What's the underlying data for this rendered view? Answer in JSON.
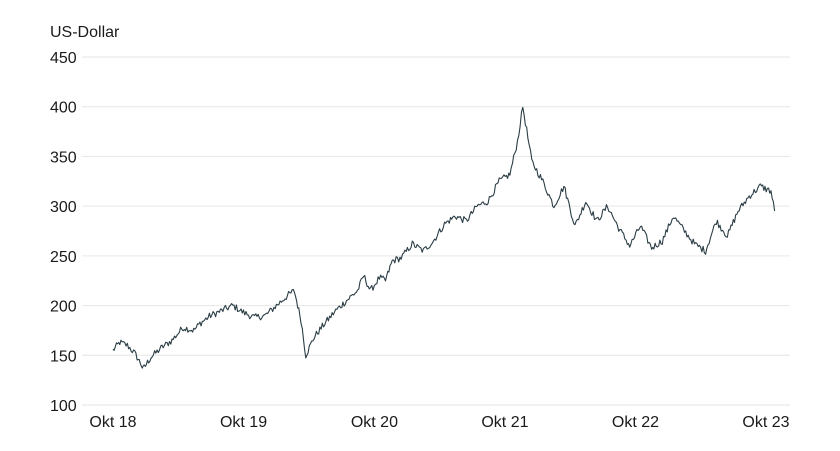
{
  "chart_data": {
    "type": "line",
    "ylabel": "US-Dollar",
    "ylim": [
      100,
      450
    ],
    "yticks": [
      100,
      150,
      200,
      250,
      300,
      350,
      400,
      450
    ],
    "xlim": [
      "2018-10-01",
      "2023-10-31"
    ],
    "xticks": [
      {
        "date": "2018-10-01",
        "label": "Okt 18"
      },
      {
        "date": "2019-10-01",
        "label": "Okt 19"
      },
      {
        "date": "2020-10-01",
        "label": "Okt 20"
      },
      {
        "date": "2021-10-01",
        "label": "Okt 21"
      },
      {
        "date": "2022-10-01",
        "label": "Okt 22"
      },
      {
        "date": "2023-10-01",
        "label": "Okt 23"
      }
    ],
    "grid": true,
    "color": "#2b3d45",
    "series": [
      {
        "x": [
          "2018-10-01",
          "2018-10-20",
          "2018-11-10",
          "2018-12-01",
          "2018-12-20",
          "2018-12-24",
          "2019-01-15",
          "2019-02-15",
          "2019-03-15",
          "2019-04-15",
          "2019-05-15",
          "2019-06-01",
          "2019-07-01",
          "2019-08-01",
          "2019-09-01",
          "2019-10-01",
          "2019-11-01",
          "2019-12-01",
          "2020-01-01",
          "2020-02-01",
          "2020-02-20",
          "2020-03-10",
          "2020-03-23",
          "2020-04-15",
          "2020-05-15",
          "2020-06-15",
          "2020-07-15",
          "2020-08-15",
          "2020-09-01",
          "2020-09-20",
          "2020-10-15",
          "2020-11-01",
          "2020-11-20",
          "2020-12-15",
          "2021-01-15",
          "2021-02-15",
          "2021-03-15",
          "2021-04-15",
          "2021-05-15",
          "2021-06-15",
          "2021-07-15",
          "2021-08-15",
          "2021-09-15",
          "2021-10-15",
          "2021-11-05",
          "2021-11-20",
          "2021-12-15",
          "2022-01-15",
          "2022-02-15",
          "2022-03-15",
          "2022-04-15",
          "2022-05-15",
          "2022-06-15",
          "2022-07-15",
          "2022-08-15",
          "2022-09-15",
          "2022-10-15",
          "2022-11-15",
          "2022-12-15",
          "2023-01-15",
          "2023-02-15",
          "2023-03-15",
          "2023-04-15",
          "2023-05-15",
          "2023-06-15",
          "2023-07-15",
          "2023-08-15",
          "2023-09-15",
          "2023-10-15",
          "2023-10-25"
        ],
        "y": [
          155,
          163,
          160,
          152,
          140,
          136,
          148,
          158,
          165,
          178,
          175,
          182,
          190,
          195,
          200,
          193,
          188,
          190,
          200,
          210,
          215,
          185,
          150,
          168,
          182,
          195,
          205,
          215,
          230,
          215,
          228,
          225,
          245,
          248,
          262,
          255,
          265,
          282,
          290,
          285,
          300,
          305,
          325,
          332,
          365,
          400,
          345,
          325,
          300,
          320,
          280,
          305,
          285,
          300,
          278,
          260,
          280,
          258,
          265,
          290,
          275,
          262,
          255,
          285,
          270,
          295,
          310,
          320,
          315,
          295
        ]
      }
    ]
  }
}
